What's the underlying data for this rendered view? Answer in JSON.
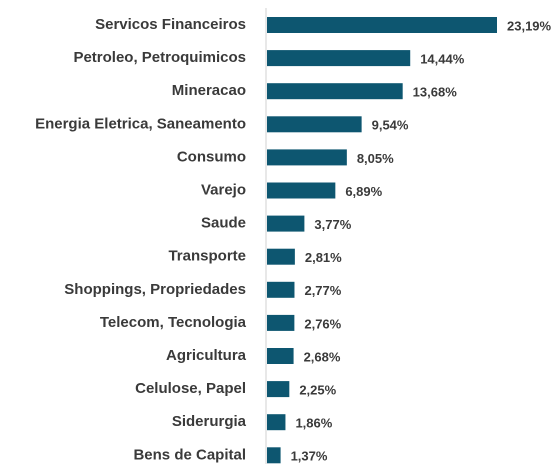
{
  "chart_data": {
    "type": "bar",
    "orientation": "horizontal",
    "color": "#0d5670",
    "categories": [
      "Servicos Financeiros",
      "Petroleo, Petroquimicos",
      "Mineracao",
      "Energia Eletrica, Saneamento",
      "Consumo",
      "Varejo",
      "Saude",
      "Transporte",
      "Shoppings, Propriedades",
      "Telecom, Tecnologia",
      "Agricultura",
      "Celulose, Papel",
      "Siderurgia",
      "Bens de Capital"
    ],
    "values": [
      23.19,
      14.44,
      13.68,
      9.54,
      8.05,
      6.89,
      3.77,
      2.81,
      2.77,
      2.76,
      2.68,
      2.25,
      1.86,
      1.37
    ],
    "value_labels": [
      "23,19%",
      "14,44%",
      "13,68%",
      "9,54%",
      "8,05%",
      "6,89%",
      "3,77%",
      "2,81%",
      "2,77%",
      "2,76%",
      "2,68%",
      "2,25%",
      "1,86%",
      "1,37%"
    ]
  }
}
